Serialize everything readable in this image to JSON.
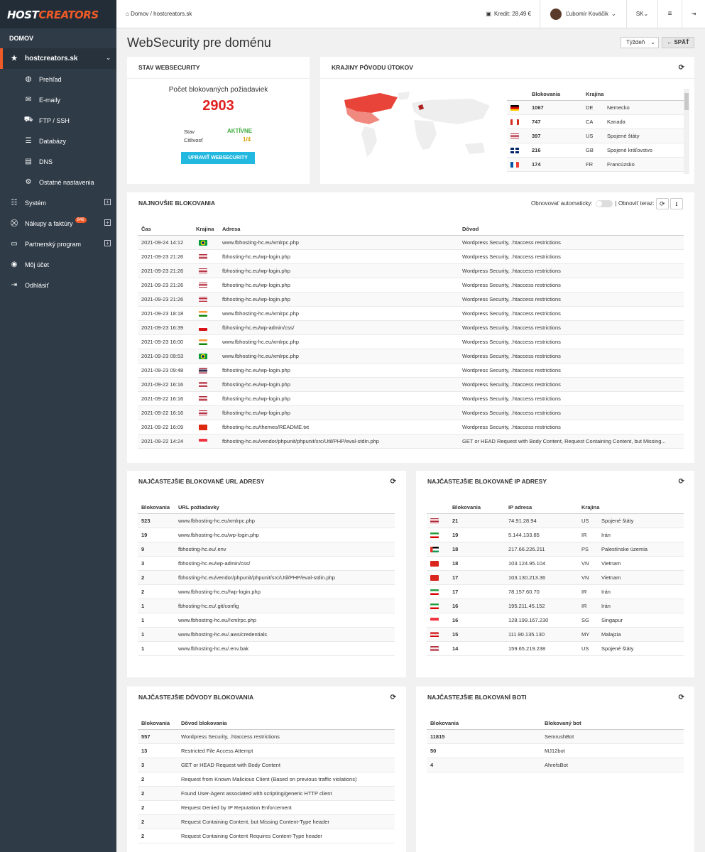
{
  "brand": {
    "part1": "HOST",
    "part2": "CREATORS",
    "accent": "#f05a28"
  },
  "sidebar": {
    "section": "DOMOV",
    "domain": "hostcreators.sk",
    "sub_items": [
      {
        "label": "Prehľad",
        "icon": "globe-icon"
      },
      {
        "label": "E-maily",
        "icon": "envelope-icon"
      },
      {
        "label": "FTP / SSH",
        "icon": "truck-icon"
      },
      {
        "label": "Databázy",
        "icon": "database-icon"
      },
      {
        "label": "DNS",
        "icon": "dns-icon"
      },
      {
        "label": "Ostatné nastavenia",
        "icon": "gear-icon"
      }
    ],
    "items": [
      {
        "label": "Systém",
        "icon": "tasks-icon",
        "expand": true
      },
      {
        "label": "Nákupy a faktúry",
        "icon": "cart-icon",
        "expand": true,
        "badge": "846"
      },
      {
        "label": "Partnerský program",
        "icon": "card-icon",
        "expand": true
      },
      {
        "label": "Môj účet",
        "icon": "user-icon"
      },
      {
        "label": "Odhlásiť",
        "icon": "logout-icon"
      }
    ]
  },
  "topbar": {
    "home": "Domov",
    "separator": "/",
    "current": "hostcreators.sk",
    "credit": "Kredit: 28,49 €",
    "user": "Ľubomír Kováčik",
    "lang": "SK"
  },
  "page": {
    "title": "WebSecurity pre doménu",
    "period": "Týždeň",
    "back": "SPÄŤ"
  },
  "status": {
    "header": "STAV WEBSECURITY",
    "count_label": "Počet blokovaných požiadaviek",
    "count": "2903",
    "state_label": "Stav",
    "state_value": "AKTÍVNE",
    "sens_label": "Citlivosť",
    "sens_value": "1/4",
    "button": "UPRAVIŤ WEBSECURITY"
  },
  "countries": {
    "header": "KRAJINY PÔVODU ÚTOKOV",
    "cols": [
      "Blokovania",
      "Krajina"
    ],
    "rows": [
      {
        "count": "1067",
        "code": "DE",
        "name": "Nemecko",
        "flag": "de"
      },
      {
        "count": "747",
        "code": "CA",
        "name": "Kanada",
        "flag": "ca"
      },
      {
        "count": "397",
        "code": "US",
        "name": "Spojené štáty",
        "flag": "us"
      },
      {
        "count": "216",
        "code": "GB",
        "name": "Spojené kráľovstvo",
        "flag": "gb"
      },
      {
        "count": "174",
        "code": "FR",
        "name": "Francúzsko",
        "flag": "fr"
      }
    ]
  },
  "latest": {
    "header": "NAJNOVŠIE BLOKOVANIA",
    "auto_label": "Obnovovať automaticky:",
    "refresh_label": "| Obnoviť teraz:",
    "cols": [
      "Čas",
      "Krajina",
      "Adresa",
      "Dôvod"
    ],
    "rows": [
      {
        "time": "2021-09-24 14:12",
        "flag": "br",
        "url": "www.fbhosting-hc.eu/xmlrpc.php",
        "reason": "Wordpress Security, .htaccess restrictions"
      },
      {
        "time": "2021-09-23 21:26",
        "flag": "us",
        "url": "fbhosting-hc.eu/wp-login.php",
        "reason": "Wordpress Security, .htaccess restrictions"
      },
      {
        "time": "2021-09-23 21:26",
        "flag": "us",
        "url": "fbhosting-hc.eu/wp-login.php",
        "reason": "Wordpress Security, .htaccess restrictions"
      },
      {
        "time": "2021-09-23 21:26",
        "flag": "us",
        "url": "fbhosting-hc.eu/wp-login.php",
        "reason": "Wordpress Security, .htaccess restrictions"
      },
      {
        "time": "2021-09-23 21:26",
        "flag": "us",
        "url": "fbhosting-hc.eu/wp-login.php",
        "reason": "Wordpress Security, .htaccess restrictions"
      },
      {
        "time": "2021-09-23 18:18",
        "flag": "in",
        "url": "www.fbhosting-hc.eu/xmlrpc.php",
        "reason": "Wordpress Security, .htaccess restrictions"
      },
      {
        "time": "2021-09-23 16:39",
        "flag": "cz",
        "url": "fbhosting-hc.eu/wp-admin/css/",
        "reason": "Wordpress Security, .htaccess restrictions"
      },
      {
        "time": "2021-09-23 16:00",
        "flag": "in",
        "url": "www.fbhosting-hc.eu/xmlrpc.php",
        "reason": "Wordpress Security, .htaccess restrictions"
      },
      {
        "time": "2021-09-23 09:53",
        "flag": "br",
        "url": "www.fbhosting-hc.eu/xmlrpc.php",
        "reason": "Wordpress Security, .htaccess restrictions"
      },
      {
        "time": "2021-09-23 09:48",
        "flag": "th",
        "url": "fbhosting-hc.eu/wp-login.php",
        "reason": "Wordpress Security, .htaccess restrictions"
      },
      {
        "time": "2021-09-22 16:16",
        "flag": "us",
        "url": "fbhosting-hc.eu/wp-login.php",
        "reason": "Wordpress Security, .htaccess restrictions"
      },
      {
        "time": "2021-09-22 16:16",
        "flag": "us",
        "url": "fbhosting-hc.eu/wp-login.php",
        "reason": "Wordpress Security, .htaccess restrictions"
      },
      {
        "time": "2021-09-22 16:16",
        "flag": "us",
        "url": "fbhosting-hc.eu/wp-login.php",
        "reason": "Wordpress Security, .htaccess restrictions"
      },
      {
        "time": "2021-09-22 16:09",
        "flag": "cn",
        "url": "fbhosting-hc.eu/themes/README.txt",
        "reason": "Wordpress Security, .htaccess restrictions"
      },
      {
        "time": "2021-09-22 14:24",
        "flag": "sg",
        "url": "fbhosting-hc.eu/vendor/phpunit/phpunit/src/Util/PHP/eval-stdin.php",
        "reason": "GET or HEAD Request with Body Content, Request Containing Content, but Missing..."
      }
    ]
  },
  "top_urls": {
    "header": "NAJČASTEJŠIE BLOKOVANÉ URL ADRESY",
    "cols": [
      "Blokovania",
      "URL požiadavky"
    ],
    "rows": [
      {
        "count": "523",
        "url": "www.fbhosting-hc.eu/xmlrpc.php"
      },
      {
        "count": "19",
        "url": "www.fbhosting-hc.eu/wp-login.php"
      },
      {
        "count": "9",
        "url": "fbhosting-hc.eu/.env"
      },
      {
        "count": "3",
        "url": "fbhosting-hc.eu/wp-admin/css/"
      },
      {
        "count": "2",
        "url": "fbhosting-hc.eu/vendor/phpunit/phpunit/src/Util/PHP/eval-stdin.php"
      },
      {
        "count": "2",
        "url": "www.fbhosting-hc.eu//wp-login.php"
      },
      {
        "count": "1",
        "url": "fbhosting-hc.eu/.git/config"
      },
      {
        "count": "1",
        "url": "www.fbhosting-hc.eu//xmlrpc.php"
      },
      {
        "count": "1",
        "url": "www.fbhosting-hc.eu/.aws/credentials"
      },
      {
        "count": "1",
        "url": "www.fbhosting-hc.eu/.env.bak"
      }
    ]
  },
  "top_ips": {
    "header": "NAJČASTEJŠIE BLOKOVANÉ IP ADRESY",
    "cols": [
      "Blokovania",
      "IP adresa",
      "Krajina"
    ],
    "rows": [
      {
        "flag": "us",
        "count": "21",
        "ip": "74.91.28.94",
        "code": "US",
        "name": "Spojené štáty"
      },
      {
        "flag": "ir",
        "count": "19",
        "ip": "5.144.133.85",
        "code": "IR",
        "name": "Irán"
      },
      {
        "flag": "ps",
        "count": "18",
        "ip": "217.66.226.211",
        "code": "PS",
        "name": "Palestínske územia"
      },
      {
        "flag": "vn",
        "count": "18",
        "ip": "103.124.95.104",
        "code": "VN",
        "name": "Vietnam"
      },
      {
        "flag": "vn",
        "count": "17",
        "ip": "103.130.213.36",
        "code": "VN",
        "name": "Vietnam"
      },
      {
        "flag": "ir",
        "count": "17",
        "ip": "78.157.60.70",
        "code": "IR",
        "name": "Irán"
      },
      {
        "flag": "ir",
        "count": "16",
        "ip": "195.211.45.152",
        "code": "IR",
        "name": "Irán"
      },
      {
        "flag": "sg",
        "count": "16",
        "ip": "128.199.167.230",
        "code": "SG",
        "name": "Singapur"
      },
      {
        "flag": "my",
        "count": "15",
        "ip": "111.90.135.130",
        "code": "MY",
        "name": "Malajzia"
      },
      {
        "flag": "us",
        "count": "14",
        "ip": "159.65.219.238",
        "code": "US",
        "name": "Spojené štáty"
      }
    ]
  },
  "top_reasons": {
    "header": "NAJČASTEJŠIE DÔVODY BLOKOVANIA",
    "cols": [
      "Blokovania",
      "Dôvod blokovania"
    ],
    "rows": [
      {
        "count": "557",
        "reason": "Wordpress Security, .htaccess restrictions"
      },
      {
        "count": "13",
        "reason": "Restricted File Access Attempt"
      },
      {
        "count": "3",
        "reason": "GET or HEAD Request with Body Content"
      },
      {
        "count": "2",
        "reason": "Request from Known Malicious Client (Based on previous traffic violations)"
      },
      {
        "count": "2",
        "reason": "Found User-Agent associated with scripting/generic HTTP client"
      },
      {
        "count": "2",
        "reason": "Request Denied by IP Reputation Enforcement"
      },
      {
        "count": "2",
        "reason": "Request Containing Content, but Missing Content-Type header"
      },
      {
        "count": "2",
        "reason": "Request Containing Content Requires Content-Type header"
      }
    ]
  },
  "top_bots": {
    "header": "NAJČASTEJŠIE BLOKOVANÍ BOTI",
    "cols": [
      "Blokovania",
      "Blokovaný bot"
    ],
    "rows": [
      {
        "count": "11815",
        "bot": "SemrushBot"
      },
      {
        "count": "50",
        "bot": "MJ12bot"
      },
      {
        "count": "4",
        "bot": "AhrefsBot"
      }
    ]
  }
}
